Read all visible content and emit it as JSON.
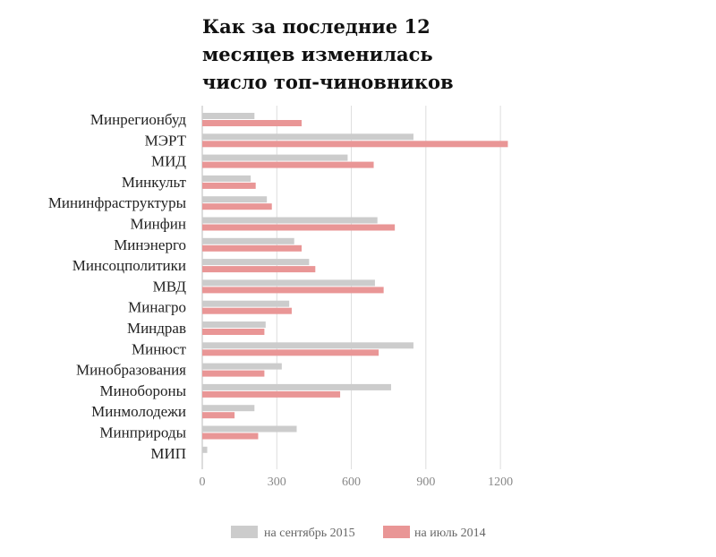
{
  "chart_data": {
    "type": "bar",
    "orientation": "horizontal",
    "title": "Как за последние 12 месяцев изменилась число топ-чиновников",
    "categories": [
      "Минрегионбуд",
      "МЭРТ",
      "МИД",
      "Минкульт",
      "Мининфраструктуры",
      "Минфин",
      "Минэнерго",
      "Минсоцполитики",
      "МВД",
      "Минагро",
      "Миндрав",
      "Минюст",
      "Минобразования",
      "Минобороны",
      "Минмолодежи",
      "Минприроды",
      "МИП"
    ],
    "series": [
      {
        "name": "на сентябрь 2015",
        "color": "#cccccc",
        "values": [
          210,
          850,
          585,
          195,
          260,
          705,
          370,
          430,
          695,
          350,
          255,
          850,
          320,
          760,
          210,
          380,
          20
        ]
      },
      {
        "name": "на июль 2014",
        "color": "#e99696",
        "values": [
          400,
          1230,
          690,
          215,
          280,
          775,
          400,
          455,
          730,
          360,
          250,
          710,
          250,
          555,
          130,
          225,
          0
        ]
      }
    ],
    "xlim": [
      0,
      1300
    ],
    "xticks": [
      0,
      300,
      600,
      900,
      1200
    ],
    "grid": true,
    "legend": "bottom"
  }
}
